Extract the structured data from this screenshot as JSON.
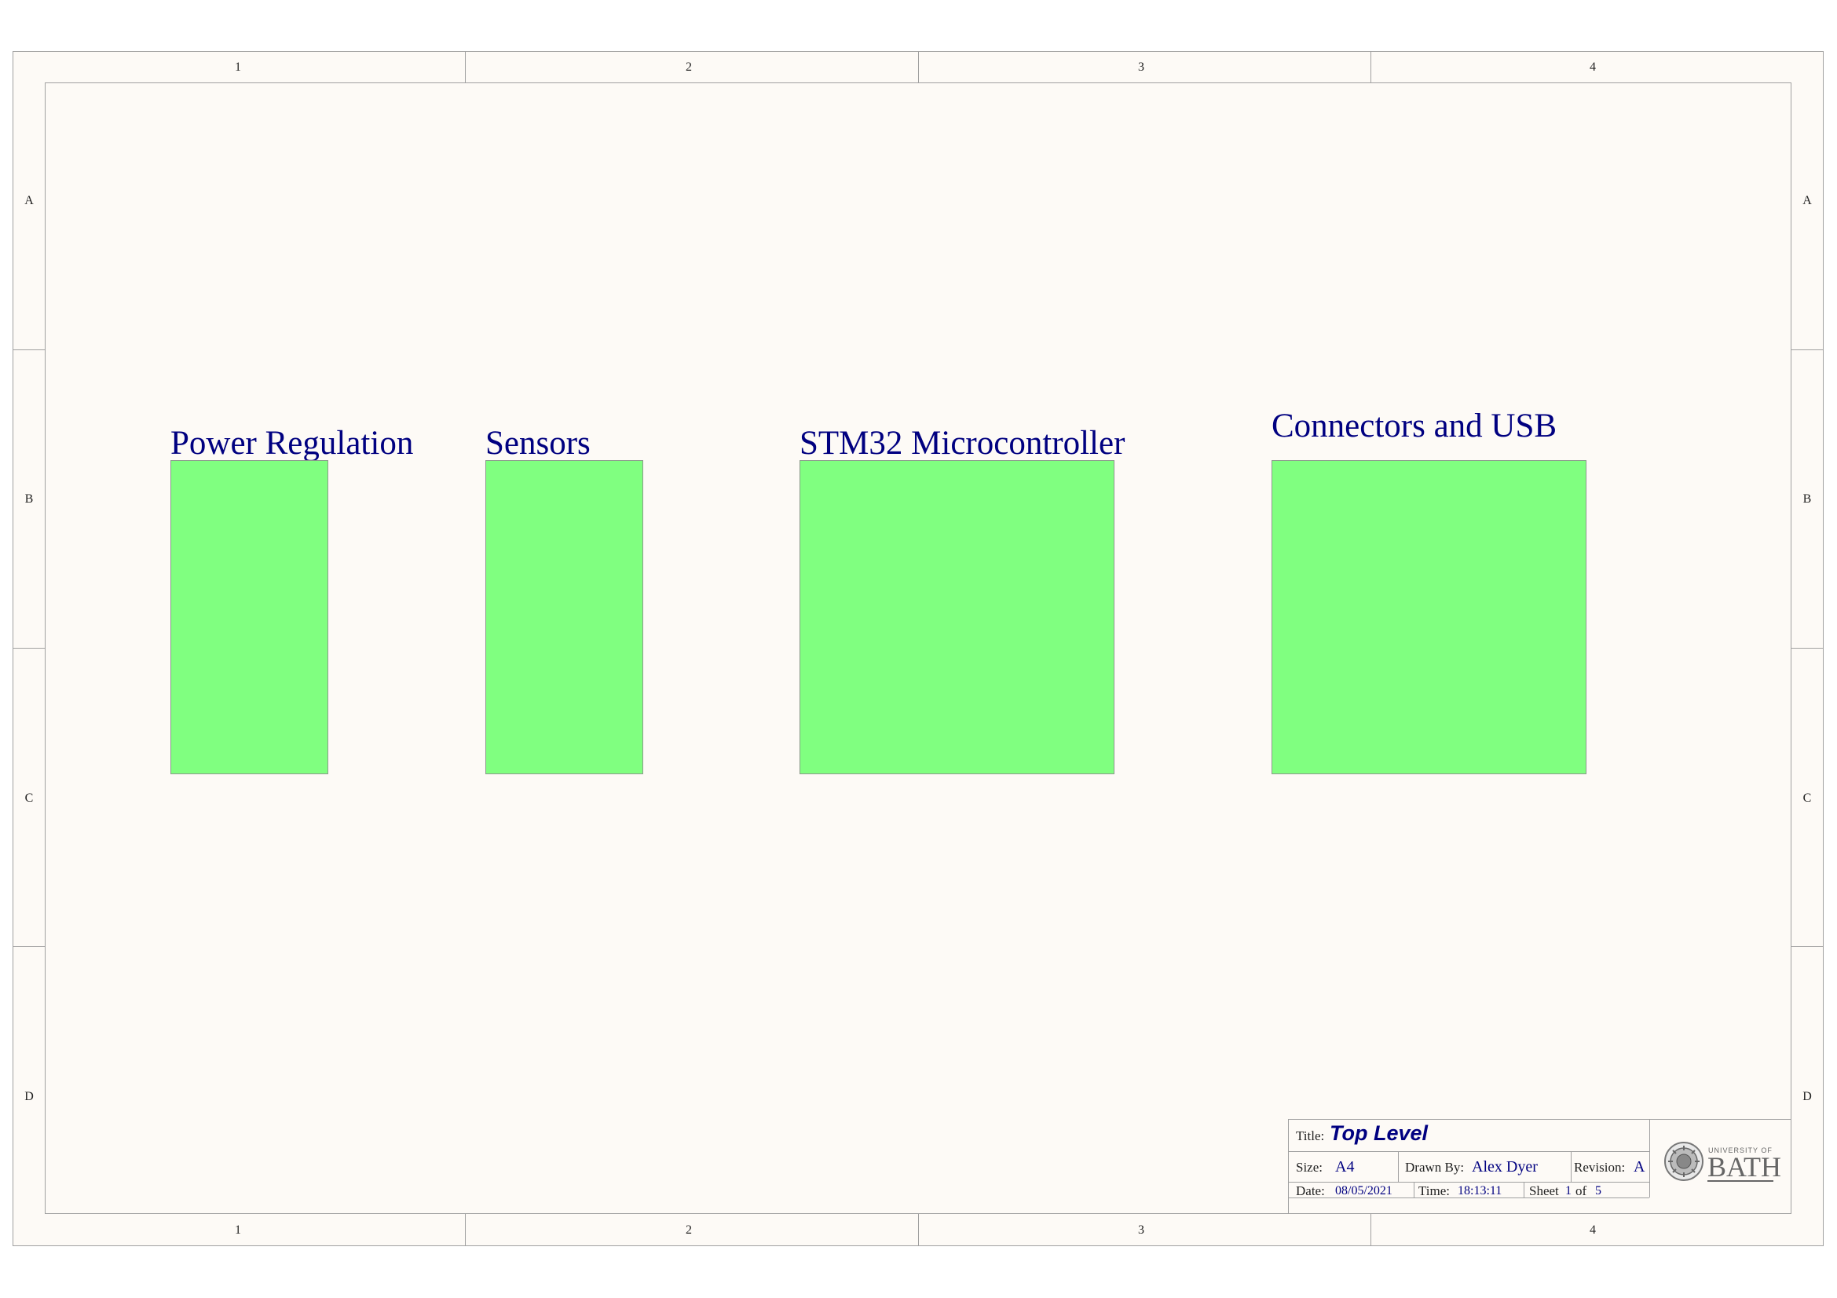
{
  "zones": {
    "columns": [
      "1",
      "2",
      "3",
      "4"
    ],
    "rows": [
      "A",
      "B",
      "C",
      "D"
    ]
  },
  "blocks": [
    {
      "label": "Power Regulation"
    },
    {
      "label": "Sensors"
    },
    {
      "label": "STM32 Microcontroller"
    },
    {
      "label": "Connectors and USB"
    }
  ],
  "title_block": {
    "title_label": "Title:",
    "title": "Top Level",
    "size_label": "Size:",
    "size": "A4",
    "drawn_by_label": "Drawn By:",
    "drawn_by": "Alex Dyer",
    "revision_label": "Revision:",
    "revision": "A",
    "date_label": "Date:",
    "date": "08/05/2021",
    "time_label": "Time:",
    "time": "18:13:11",
    "sheet_label": "Sheet",
    "sheet": "1",
    "of_label": "of",
    "sheet_total": "5"
  },
  "logo": {
    "top_text": "UNIVERSITY OF",
    "main_text": "BATH"
  },
  "colors": {
    "block_fill": "#80ff80",
    "text_blue": "#000080",
    "sheet_background": "#fdfaf6"
  }
}
